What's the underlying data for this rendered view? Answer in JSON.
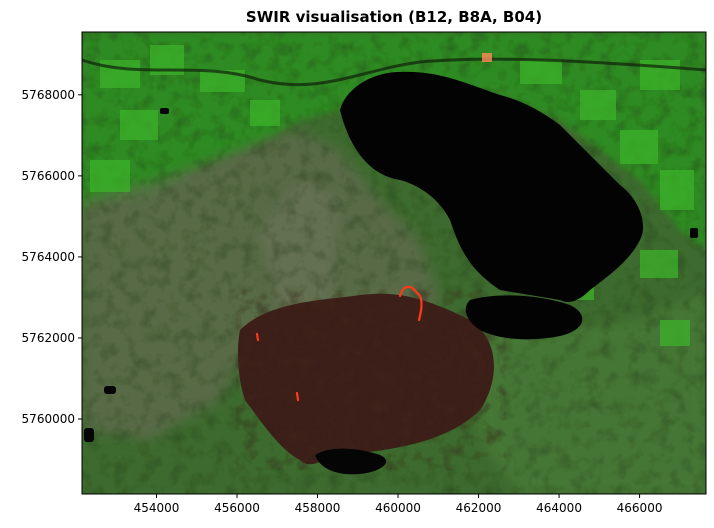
{
  "figure": {
    "title": "SWIR visualisation (B12, B8A, B04)"
  },
  "chart_data": {
    "type": "raster_image",
    "title": "SWIR visualisation (B12, B8A, B04)",
    "xlabel": "",
    "ylabel": "",
    "xlim": [
      452150,
      467650
    ],
    "ylim": [
      5758150,
      5769550
    ],
    "x_ticks": [
      454000,
      456000,
      458000,
      460000,
      462000,
      464000,
      466000
    ],
    "x_tick_labels": [
      "454000",
      "456000",
      "458000",
      "460000",
      "462000",
      "464000",
      "466000"
    ],
    "y_ticks": [
      5760000,
      5762000,
      5764000,
      5766000,
      5768000
    ],
    "y_tick_labels": [
      "5760000",
      "5762000",
      "5764000",
      "5766000",
      "5768000"
    ],
    "grid": false,
    "colors": {
      "vegetation_bright": "#2f9a22",
      "vegetation_base": "#3d6a2e",
      "moorland": "#5a6a48",
      "burn_scar": "#3a1e18",
      "water": "#030303",
      "active_fire": "#ff3a1a"
    }
  }
}
